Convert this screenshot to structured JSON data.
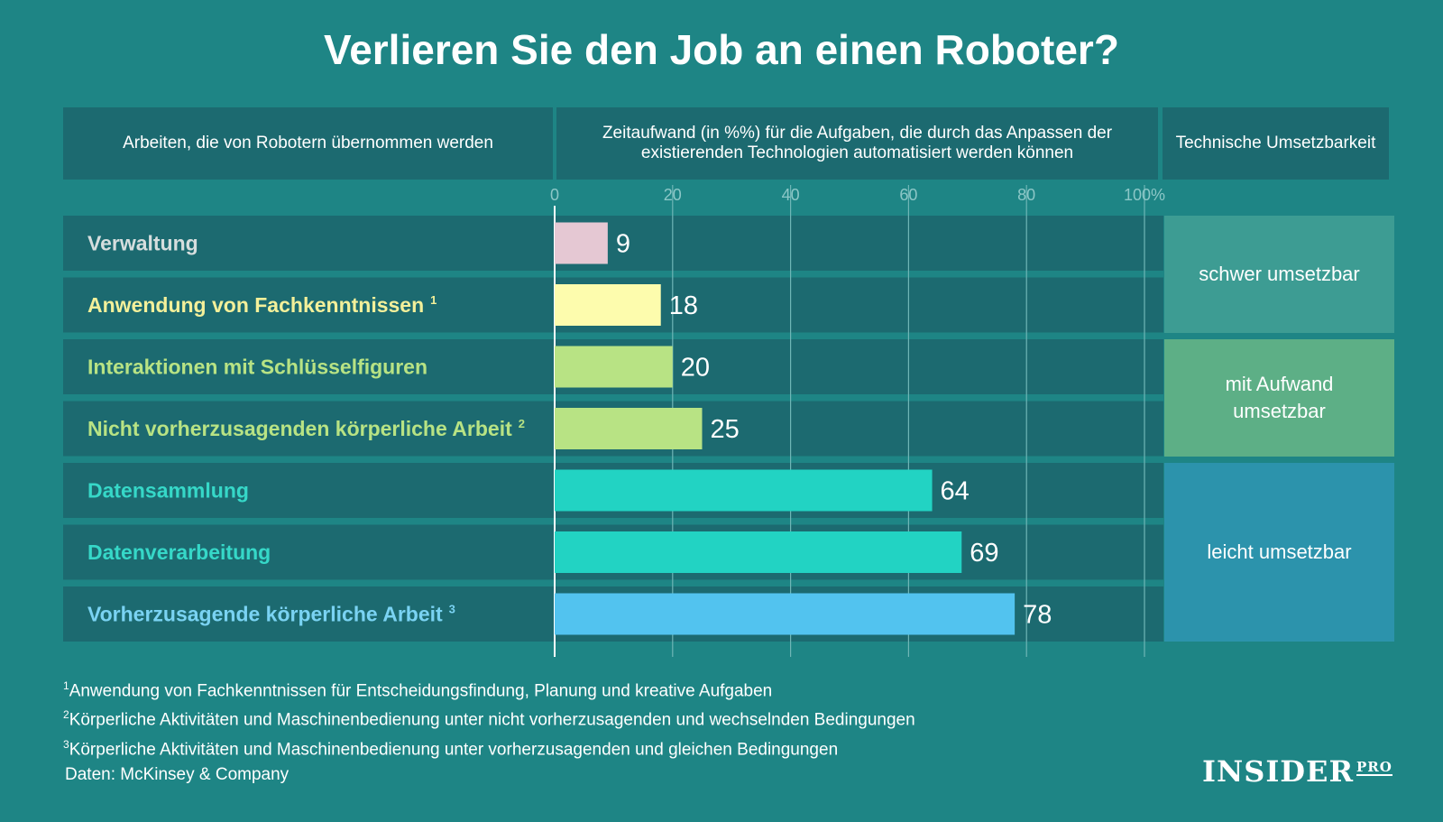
{
  "title": "Verlieren Sie den Job an einen Roboter?",
  "headers": {
    "tasks": "Arbeiten, die von Robotern übernommen werden",
    "time": "Zeitaufwand (in %%) für die Aufgaben, die durch das Anpassen der existierenden Technologien automatisiert werden können",
    "feasibility": "Technische Umsetzbarkeit"
  },
  "chart_data": {
    "type": "bar",
    "orientation": "horizontal",
    "categories": [
      "Verwaltung",
      "Anwendung von Fachkenntnissen",
      "Interaktionen mit Schlüsselfiguren",
      "Nicht vorherzusagenden körperliche Arbeit",
      "Datensammlung",
      "Datenverarbeitung",
      "Vorherzusagende körperliche Arbeit"
    ],
    "category_superscripts": [
      "",
      "1",
      "",
      "2",
      "",
      "",
      "3"
    ],
    "values": [
      9,
      18,
      20,
      25,
      64,
      69,
      78
    ],
    "value_labels": [
      "9",
      "18",
      "20",
      "25",
      "64",
      "69",
      "78"
    ],
    "bar_colors": [
      "#e5c8d3",
      "#fdfcad",
      "#b8e384",
      "#b8e384",
      "#22d3c3",
      "#22d3c3",
      "#52c3ef"
    ],
    "label_colors": [
      "#d6dede",
      "#f3f09a",
      "#b8e384",
      "#b8e384",
      "#36d8c8",
      "#36d8c8",
      "#7ad3f3"
    ],
    "xlim": [
      0,
      100
    ],
    "ticks": [
      0,
      20,
      40,
      60,
      80,
      100
    ],
    "tick_labels": [
      "0",
      "20",
      "40",
      "60",
      "80",
      "100%"
    ],
    "grid": true
  },
  "feasibility_groups": [
    {
      "label": "schwer umsetzbar",
      "color": "#3d9c93"
    },
    {
      "label": "mit Aufwand umsetzbar",
      "color": "#5daf86"
    },
    {
      "label": "leicht umsetzbar",
      "color": "#2c93ac"
    }
  ],
  "footnotes": [
    {
      "marker": "1",
      "text": "Anwendung von Fachkenntnissen für Entscheidungsfindung, Planung und kreative Aufgaben"
    },
    {
      "marker": "2",
      "text": "Körperliche Aktivitäten und Maschinenbedienung unter nicht vorherzusagenden und wechselnden Bedingungen"
    },
    {
      "marker": "3",
      "text": "Körperliche Aktivitäten und Maschinenbedienung unter vorherzusagenden und gleichen Bedingungen"
    }
  ],
  "source": "Daten: McKinsey & Company",
  "logo": {
    "main": "INSIDER",
    "sub": "PRO"
  },
  "colors": {
    "background": "#1e8585",
    "header_bg": "#1c6a70",
    "row_bg": "#1c6a70"
  }
}
